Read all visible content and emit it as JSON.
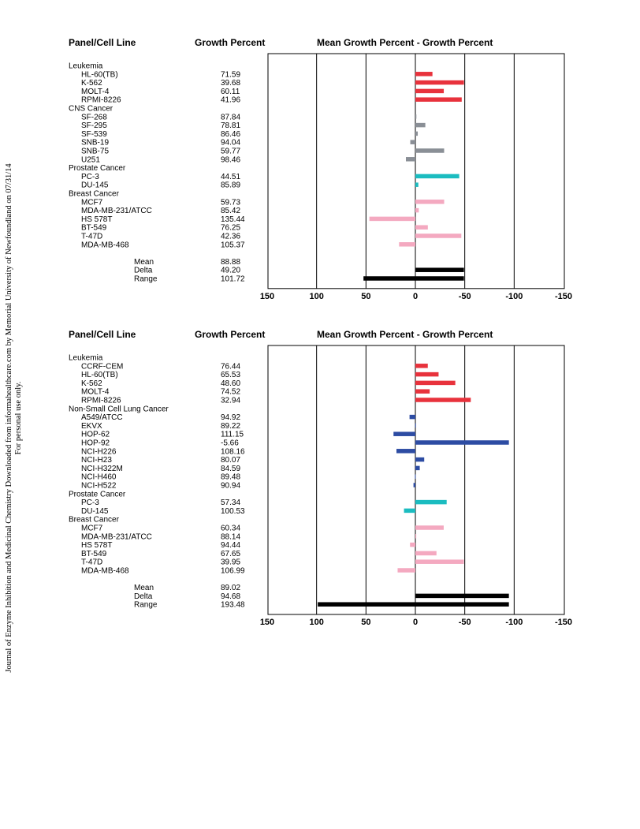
{
  "side_note": {
    "line1": "Journal of Enzyme Inhibition and Medicinal Chemistry Downloaded from informahealthcare.com by Memorial University of Newfoundland on 07/31/14",
    "line2": "For personal use only."
  },
  "chart_data": [
    {
      "type": "bar",
      "orientation": "horizontal",
      "headers": {
        "col1": "Panel/Cell Line",
        "col2": "Growth Percent",
        "col3": "Mean Growth Percent - Growth Percent"
      },
      "xlim": [
        150,
        -150
      ],
      "xticks": [
        "150",
        "100",
        "50",
        "0",
        "-50",
        "-100",
        "-150"
      ],
      "grid": true,
      "rows": [
        {
          "kind": "group",
          "label": "Leukemia"
        },
        {
          "kind": "bar",
          "label": "HL-60(TB)",
          "growth": "71.59",
          "value": -17.29,
          "color": "#e8323c"
        },
        {
          "kind": "bar",
          "label": "K-562",
          "growth": "39.68",
          "value": -49.2,
          "color": "#e8323c"
        },
        {
          "kind": "bar",
          "label": "MOLT-4",
          "growth": "60.11",
          "value": -28.77,
          "color": "#e8323c"
        },
        {
          "kind": "bar",
          "label": "RPMI-8226",
          "growth": "41.96",
          "value": -46.92,
          "color": "#e8323c"
        },
        {
          "kind": "group",
          "label": "CNS Cancer"
        },
        {
          "kind": "bar",
          "label": "SF-268",
          "growth": "87.84",
          "value": -1.04,
          "color": "#8a8f96"
        },
        {
          "kind": "bar",
          "label": "SF-295",
          "growth": "78.81",
          "value": -10.07,
          "color": "#8a8f96"
        },
        {
          "kind": "bar",
          "label": "SF-539",
          "growth": "86.46",
          "value": -2.42,
          "color": "#8a8f96"
        },
        {
          "kind": "bar",
          "label": "SNB-19",
          "growth": "94.04",
          "value": 5.16,
          "color": "#8a8f96"
        },
        {
          "kind": "bar",
          "label": "SNB-75",
          "growth": "59.77",
          "value": -29.11,
          "color": "#8a8f96"
        },
        {
          "kind": "bar",
          "label": "U251",
          "growth": "98.46",
          "value": 9.58,
          "color": "#8a8f96"
        },
        {
          "kind": "group",
          "label": "Prostate Cancer"
        },
        {
          "kind": "bar",
          "label": "PC-3",
          "growth": "44.51",
          "value": -44.37,
          "color": "#1bbcc0"
        },
        {
          "kind": "bar",
          "label": "DU-145",
          "growth": "85.89",
          "value": -2.99,
          "color": "#1bbcc0"
        },
        {
          "kind": "group",
          "label": "Breast Cancer"
        },
        {
          "kind": "bar",
          "label": "MCF7",
          "growth": "59.73",
          "value": -29.15,
          "color": "#f4a9c0"
        },
        {
          "kind": "bar",
          "label": "MDA-MB-231/ATCC",
          "growth": "85.42",
          "value": -3.46,
          "color": "#f4a9c0"
        },
        {
          "kind": "bar",
          "label": "HS 578T",
          "growth": "135.44",
          "value": 46.56,
          "color": "#f4a9c0"
        },
        {
          "kind": "bar",
          "label": "BT-549",
          "growth": "76.25",
          "value": -12.63,
          "color": "#f4a9c0"
        },
        {
          "kind": "bar",
          "label": "T-47D",
          "growth": "42.36",
          "value": -46.52,
          "color": "#f4a9c0"
        },
        {
          "kind": "bar",
          "label": "MDA-MB-468",
          "growth": "105.37",
          "value": 16.49,
          "color": "#f4a9c0"
        },
        {
          "kind": "spacer"
        },
        {
          "kind": "summary",
          "label": "Mean",
          "growth": "88.88"
        },
        {
          "kind": "summary_bar",
          "label": "Delta",
          "growth": "49.20",
          "value": -49.2,
          "color": "#000000"
        },
        {
          "kind": "summary_bar",
          "label": "Range",
          "growth": "101.72",
          "value": [
            52.52,
            -49.2
          ],
          "color": "#000000"
        }
      ]
    },
    {
      "type": "bar",
      "orientation": "horizontal",
      "headers": {
        "col1": "Panel/Cell Line",
        "col2": "Growth Percent",
        "col3": "Mean Growth Percent - Growth Percent"
      },
      "xlim": [
        150,
        -150
      ],
      "xticks": [
        "150",
        "100",
        "50",
        "0",
        "-50",
        "-100",
        "-150"
      ],
      "grid": true,
      "rows": [
        {
          "kind": "group",
          "label": "Leukemia"
        },
        {
          "kind": "bar",
          "label": "CCRF-CEM",
          "growth": "76.44",
          "value": -12.58,
          "color": "#e8323c"
        },
        {
          "kind": "bar",
          "label": "HL-60(TB)",
          "growth": "65.53",
          "value": -23.49,
          "color": "#e8323c"
        },
        {
          "kind": "bar",
          "label": "K-562",
          "growth": "48.60",
          "value": -40.42,
          "color": "#e8323c"
        },
        {
          "kind": "bar",
          "label": "MOLT-4",
          "growth": "74.52",
          "value": -14.5,
          "color": "#e8323c"
        },
        {
          "kind": "bar",
          "label": "RPMI-8226",
          "growth": "32.94",
          "value": -56.08,
          "color": "#e8323c"
        },
        {
          "kind": "group",
          "label": "Non-Small Cell Lung Cancer"
        },
        {
          "kind": "bar",
          "label": "A549/ATCC",
          "growth": "94.92",
          "value": 5.9,
          "color": "#2d4ca3"
        },
        {
          "kind": "bar",
          "label": "EKVX",
          "growth": "89.22",
          "value": 0.2,
          "color": "#2d4ca3"
        },
        {
          "kind": "bar",
          "label": "HOP-62",
          "growth": "111.15",
          "value": 22.13,
          "color": "#2d4ca3"
        },
        {
          "kind": "bar",
          "label": "HOP-92",
          "growth": "-5.66",
          "value": -94.68,
          "color": "#2d4ca3"
        },
        {
          "kind": "bar",
          "label": "NCI-H226",
          "growth": "108.16",
          "value": 19.14,
          "color": "#2d4ca3"
        },
        {
          "kind": "bar",
          "label": "NCI-H23",
          "growth": "80.07",
          "value": -8.95,
          "color": "#2d4ca3"
        },
        {
          "kind": "bar",
          "label": "NCI-H322M",
          "growth": "84.59",
          "value": -4.43,
          "color": "#2d4ca3"
        },
        {
          "kind": "bar",
          "label": "NCI-H460",
          "growth": "89.48",
          "value": 0.46,
          "color": "#2d4ca3"
        },
        {
          "kind": "bar",
          "label": "NCI-H522",
          "growth": "90.94",
          "value": 1.92,
          "color": "#2d4ca3"
        },
        {
          "kind": "group",
          "label": "Prostate Cancer"
        },
        {
          "kind": "bar",
          "label": "PC-3",
          "growth": "57.34",
          "value": -31.68,
          "color": "#1bbcc0"
        },
        {
          "kind": "bar",
          "label": "DU-145",
          "growth": "100.53",
          "value": 11.51,
          "color": "#1bbcc0"
        },
        {
          "kind": "group",
          "label": "Breast Cancer"
        },
        {
          "kind": "bar",
          "label": "MCF7",
          "growth": "60.34",
          "value": -28.68,
          "color": "#f4a9c0"
        },
        {
          "kind": "bar",
          "label": "MDA-MB-231/ATCC",
          "growth": "88.14",
          "value": -0.88,
          "color": "#f4a9c0"
        },
        {
          "kind": "bar",
          "label": "HS 578T",
          "growth": "94.44",
          "value": 5.42,
          "color": "#f4a9c0"
        },
        {
          "kind": "bar",
          "label": "BT-549",
          "growth": "67.65",
          "value": -21.37,
          "color": "#f4a9c0"
        },
        {
          "kind": "bar",
          "label": "T-47D",
          "growth": "39.95",
          "value": -49.07,
          "color": "#f4a9c0"
        },
        {
          "kind": "bar",
          "label": "MDA-MB-468",
          "growth": "106.99",
          "value": 17.97,
          "color": "#f4a9c0"
        },
        {
          "kind": "spacer"
        },
        {
          "kind": "summary",
          "label": "Mean",
          "growth": "89.02"
        },
        {
          "kind": "summary_bar",
          "label": "Delta",
          "growth": "94.68",
          "value": -94.68,
          "color": "#000000"
        },
        {
          "kind": "summary_bar",
          "label": "Range",
          "growth": "193.48",
          "value": [
            98.8,
            -94.68
          ],
          "color": "#000000"
        }
      ]
    }
  ]
}
